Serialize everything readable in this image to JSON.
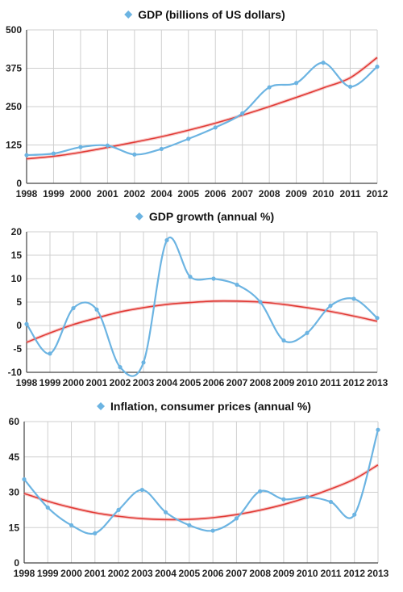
{
  "chart_data": [
    {
      "type": "line",
      "title": "GDP (billions of US dollars)",
      "x": [
        "1998",
        "1999",
        "2000",
        "2001",
        "2002",
        "2004",
        "2005",
        "2006",
        "2007",
        "2008",
        "2009",
        "2010",
        "2011",
        "2012"
      ],
      "series": [
        {
          "name": "GDP (billions of US dollars)",
          "values": [
            92,
            97,
            118,
            123,
            94,
            112,
            145,
            182,
            228,
            313,
            327,
            393,
            315,
            380
          ]
        }
      ],
      "trendline": {
        "values": [
          80,
          88,
          101,
          117,
          134,
          152,
          173,
          196,
          222,
          250,
          280,
          311,
          344,
          410
        ]
      },
      "ylim": [
        0,
        500
      ],
      "yticks": [
        0,
        125,
        250,
        375,
        500
      ],
      "grid": true,
      "colors": {
        "series": "#6cb4e2",
        "trend": "#e13a35",
        "grid": "#cfcfcf"
      }
    },
    {
      "type": "line",
      "title": "GDP growth (annual %)",
      "x": [
        "1998",
        "1999",
        "2000",
        "2001",
        "2002",
        "2003",
        "2004",
        "2005",
        "2006",
        "2007",
        "2008",
        "2009",
        "2010",
        "2011",
        "2012",
        "2013"
      ],
      "series": [
        {
          "name": "GDP growth (annual %)",
          "values": [
            0.3,
            -6.0,
            3.7,
            3.4,
            -8.9,
            -7.9,
            18.2,
            10.4,
            10.0,
            8.7,
            5.0,
            -3.2,
            -1.6,
            4.2,
            5.7,
            1.6
          ]
        }
      ],
      "trendline": {
        "values": [
          -3.6,
          -1.6,
          0.2,
          1.6,
          2.9,
          3.8,
          4.5,
          4.9,
          5.2,
          5.2,
          5.0,
          4.5,
          3.8,
          3.0,
          2.0,
          0.9
        ]
      },
      "ylim": [
        -10,
        20
      ],
      "yticks": [
        -10,
        -5,
        0,
        5,
        10,
        15,
        20
      ],
      "grid": true,
      "colors": {
        "series": "#6cb4e2",
        "trend": "#e13a35",
        "grid": "#cfcfcf"
      }
    },
    {
      "type": "line",
      "title": "Inflation, consumer prices (annual %)",
      "x": [
        "1998",
        "1999",
        "2000",
        "2001",
        "2002",
        "2003",
        "2004",
        "2005",
        "2006",
        "2007",
        "2008",
        "2009",
        "2010",
        "2011",
        "2012",
        "2013"
      ],
      "series": [
        {
          "name": "Inflation, consumer prices (annual %)",
          "values": [
            35.5,
            23.5,
            16.0,
            12.6,
            22.5,
            31.0,
            21.5,
            16.0,
            13.7,
            18.9,
            30.4,
            27.0,
            28.0,
            25.9,
            20.5,
            56.5
          ]
        }
      ],
      "trendline": {
        "values": [
          29.5,
          26.2,
          23.5,
          21.3,
          19.8,
          18.8,
          18.4,
          18.5,
          19.2,
          20.5,
          22.4,
          24.8,
          27.8,
          31.4,
          35.6,
          41.6
        ]
      },
      "ylim": [
        0,
        60
      ],
      "yticks": [
        0,
        15,
        30,
        45,
        60
      ],
      "grid": true,
      "colors": {
        "series": "#6cb4e2",
        "trend": "#e13a35",
        "grid": "#cfcfcf"
      }
    }
  ]
}
